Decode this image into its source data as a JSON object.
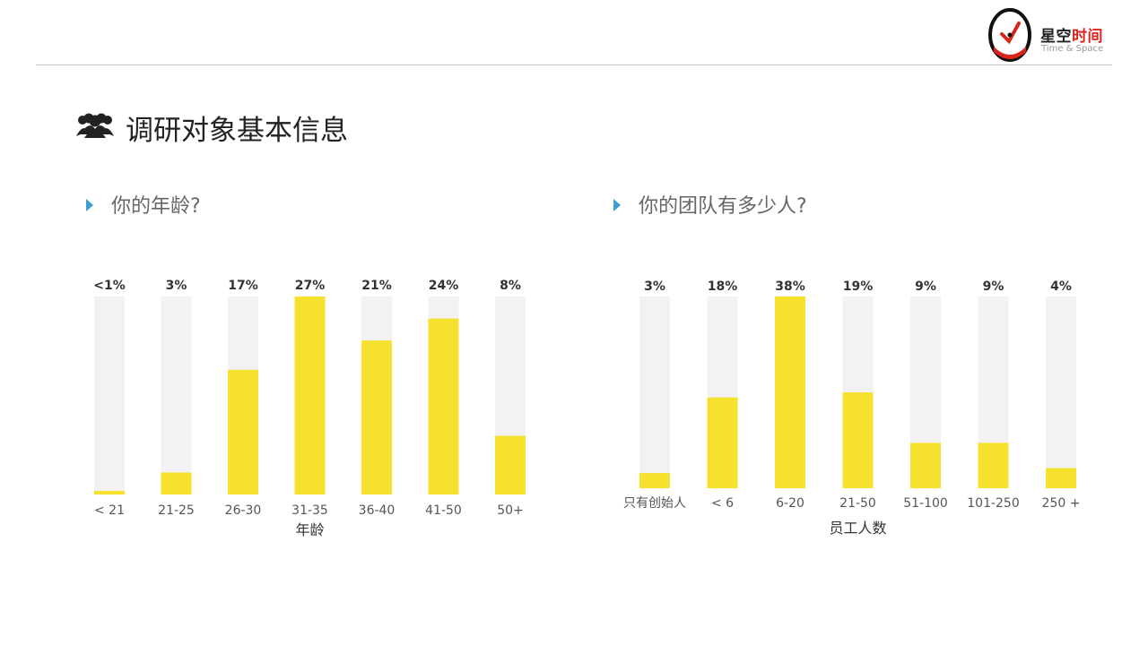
{
  "header": {
    "brand_cn_black": "星空",
    "brand_cn_red": "时间",
    "brand_en": "Time & Space",
    "accent_red": "#d9261c"
  },
  "page_title": "调研对象基本信息",
  "title_icon": "people-group-icon",
  "chart_data": [
    {
      "type": "bar",
      "question": "你的年龄?",
      "xlabel": "年龄",
      "ylabel": "",
      "categories": [
        "< 21",
        "21-25",
        "26-30",
        "31-35",
        "36-40",
        "41-50",
        "50+"
      ],
      "values": [
        0.5,
        3,
        17,
        27,
        21,
        24,
        8
      ],
      "value_labels": [
        "<1%",
        "3%",
        "17%",
        "27%",
        "21%",
        "24%",
        "8%"
      ],
      "ylim": [
        0,
        27
      ],
      "bar_color": "#f6e22e",
      "track_color": "#f3f1f3"
    },
    {
      "type": "bar",
      "question": "你的团队有多少人?",
      "xlabel": "员工人数",
      "ylabel": "",
      "categories": [
        "只有创始人",
        "< 6",
        "6-20",
        "21-50",
        "51-100",
        "101-250",
        "250 +"
      ],
      "values": [
        3,
        18,
        38,
        19,
        9,
        9,
        4
      ],
      "value_labels": [
        "3%",
        "18%",
        "38%",
        "19%",
        "9%",
        "9%",
        "4%"
      ],
      "ylim": [
        0,
        38
      ],
      "bar_color": "#f6e22e",
      "track_color": "#f3f1f3"
    }
  ]
}
